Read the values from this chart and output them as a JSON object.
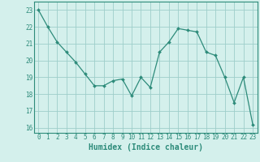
{
  "x": [
    0,
    1,
    2,
    3,
    4,
    5,
    6,
    7,
    8,
    9,
    10,
    11,
    12,
    13,
    14,
    15,
    16,
    17,
    18,
    19,
    20,
    21,
    22,
    23
  ],
  "y": [
    23.0,
    22.0,
    21.1,
    20.5,
    19.9,
    19.2,
    18.5,
    18.5,
    18.8,
    18.9,
    17.9,
    19.0,
    18.4,
    20.5,
    21.1,
    21.9,
    21.8,
    21.7,
    20.5,
    20.3,
    19.0,
    17.5,
    19.0,
    16.2
  ],
  "line_color": "#2d8b7a",
  "marker_color": "#2d8b7a",
  "bg_color": "#d4f0ec",
  "grid_color": "#9ececa",
  "xlabel": "Humidex (Indice chaleur)",
  "ylim": [
    15.7,
    23.5
  ],
  "xlim": [
    -0.5,
    23.5
  ],
  "yticks": [
    16,
    17,
    18,
    19,
    20,
    21,
    22,
    23
  ],
  "xticks": [
    0,
    1,
    2,
    3,
    4,
    5,
    6,
    7,
    8,
    9,
    10,
    11,
    12,
    13,
    14,
    15,
    16,
    17,
    18,
    19,
    20,
    21,
    22,
    23
  ],
  "tick_color": "#2d8b7a",
  "xlabel_fontsize": 7.0,
  "tick_fontsize": 5.5
}
